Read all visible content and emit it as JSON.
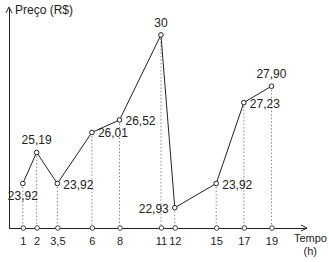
{
  "chart_data": {
    "type": "line",
    "y_label": "Preço (R$)",
    "x_label": "Tempo (h)",
    "x": [
      1,
      2,
      3.5,
      6,
      8,
      11,
      12,
      15,
      17,
      19
    ],
    "values": [
      23.92,
      25.19,
      23.92,
      26.01,
      26.52,
      30,
      22.93,
      23.92,
      27.23,
      27.9
    ],
    "value_labels": [
      "23,92",
      "25,19",
      "23,92",
      "26,01",
      "26,52",
      "30",
      "22,93",
      "23,92",
      "27,23",
      "27,90"
    ],
    "xlim": [
      0,
      21.5
    ],
    "xticks": [
      1,
      2,
      {
        "value": 3.5,
        "label": "3,5"
      },
      6,
      8,
      11,
      12,
      15,
      17,
      19
    ],
    "ylim": [
      22.1,
      31.1
    ],
    "tick_labels": "x",
    "data_labels": true,
    "grid": false,
    "color": "#222222",
    "marker": "circle"
  }
}
